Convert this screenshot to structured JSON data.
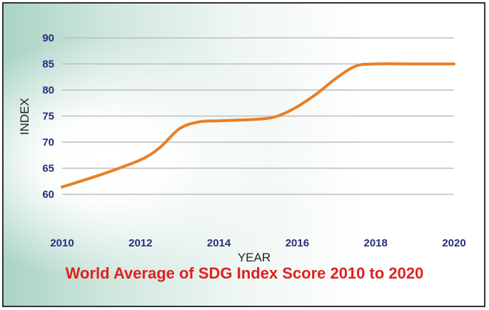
{
  "chart_data": {
    "type": "line",
    "title": "World Average of SDG Index Score 2010 to 2020",
    "xlabel": "YEAR",
    "ylabel": "INDEX",
    "x_ticks": [
      2010,
      2012,
      2014,
      2016,
      2018,
      2020
    ],
    "y_ticks": [
      60,
      65,
      70,
      75,
      80,
      85,
      90
    ],
    "xlim": [
      2010,
      2020
    ],
    "ylim": [
      55,
      90
    ],
    "grid": true,
    "series": [
      {
        "color": "#e87f25",
        "x": [
          2010,
          2011,
          2012,
          2012.5,
          2013,
          2013.5,
          2014,
          2015,
          2015.5,
          2016,
          2016.5,
          2017,
          2017.5,
          2018,
          2019,
          2020
        ],
        "y": [
          61.4,
          63.8,
          66.6,
          69.0,
          72.6,
          73.9,
          74.1,
          74.4,
          75.0,
          76.8,
          79.3,
          82.3,
          84.6,
          85.0,
          85.0,
          85.0
        ]
      }
    ]
  },
  "colors": {
    "line": "#e87f25",
    "tick_text": "#2b2d7a",
    "title": "#e02020",
    "grid": "#bdbdbd"
  }
}
